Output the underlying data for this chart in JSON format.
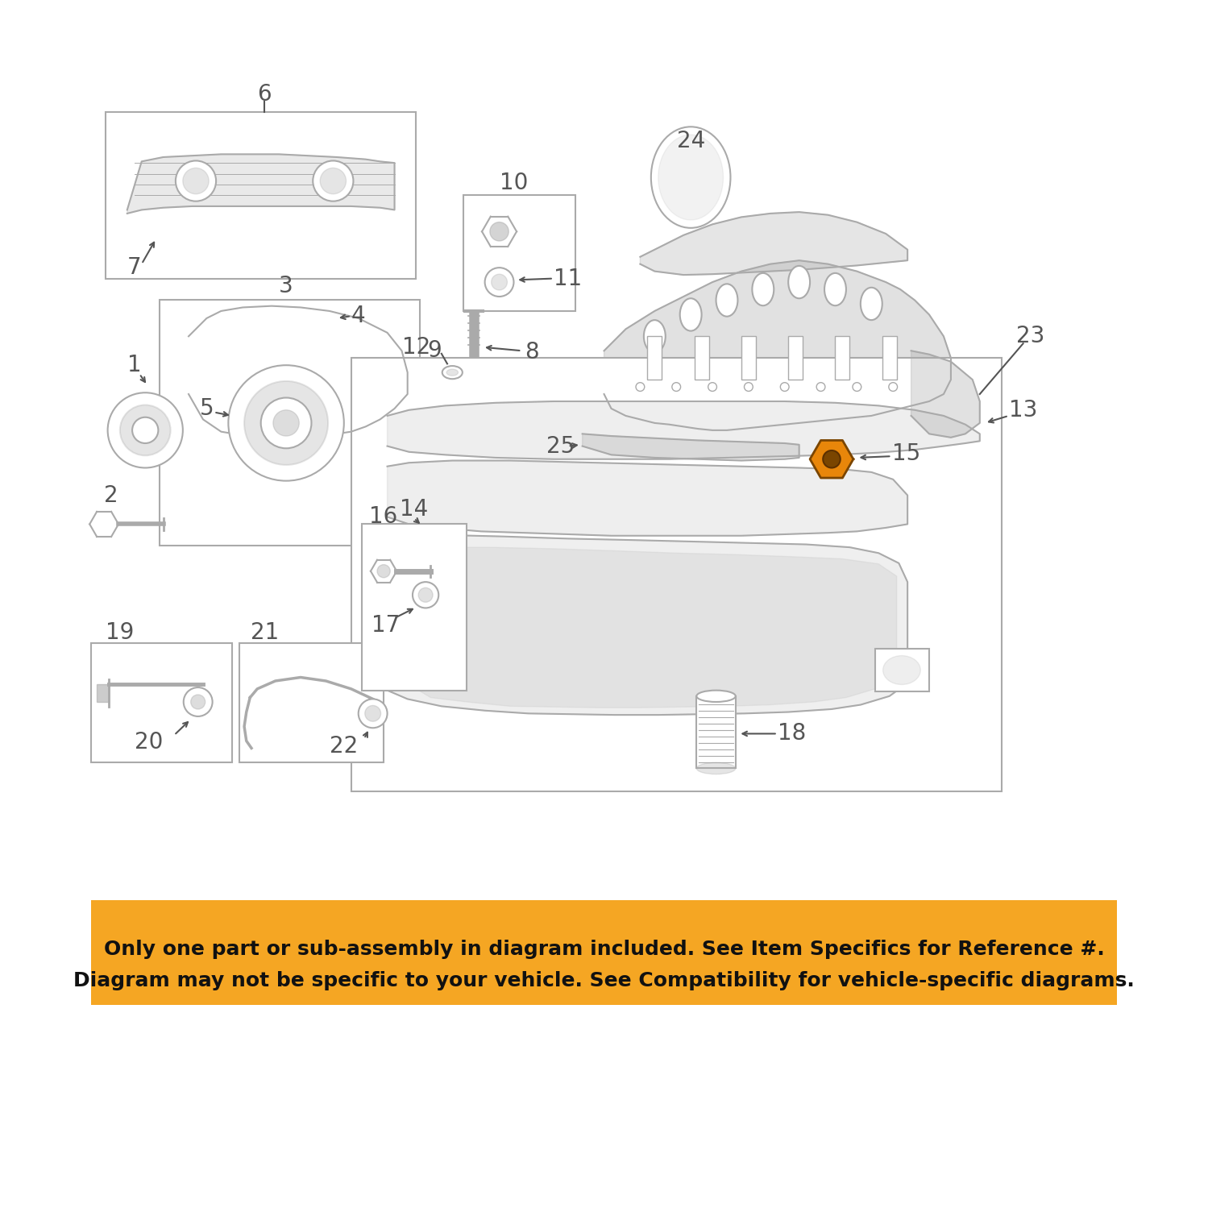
{
  "bg_color": "#ffffff",
  "diagram_color": "#aaaaaa",
  "highlight_color": "#E8860A",
  "text_color": "#555555",
  "orange_bg": "#F5A623",
  "banner_text_line1": "Only one part or sub-assembly in diagram included. See Item Specifics for Reference #.",
  "banner_text_line2": "Diagram may not be specific to your vehicle. See Compatibility for vehicle-specific diagrams.",
  "part_color": "#aaaaaa",
  "line_color": "#aaaaaa",
  "highlight_part": 15
}
